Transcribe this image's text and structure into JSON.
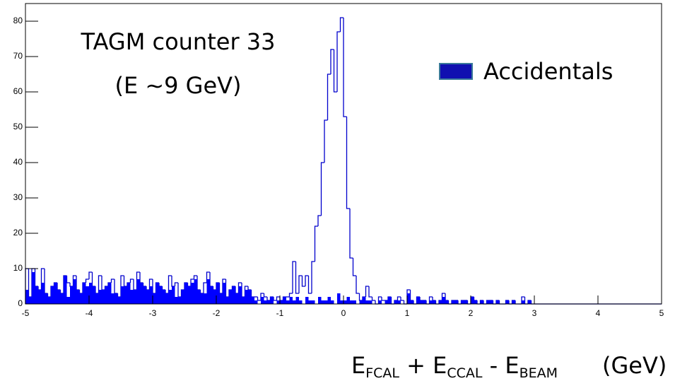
{
  "chart_data": {
    "type": "histogram",
    "title_lines": [
      "TAGM counter 33",
      "(E ∼9 GeV)"
    ],
    "xlabel_parts": [
      "E",
      "FCAL",
      " + E",
      "CCAL",
      " - E",
      "BEAM"
    ],
    "xlabel_unit": "(GeV)",
    "bins": [
      -5,
      -4.95,
      -4.9,
      -4.85,
      -4.8,
      -4.75,
      -4.7,
      -4.65,
      -4.6,
      -4.55,
      -4.5,
      -4.45,
      -4.4,
      -4.35,
      -4.3,
      -4.25,
      -4.2,
      -4.15,
      -4.1,
      -4.05,
      -4,
      -3.95,
      -3.9,
      -3.85,
      -3.8,
      -3.75,
      -3.7,
      -3.65,
      -3.6,
      -3.55,
      -3.5,
      -3.45,
      -3.4,
      -3.35,
      -3.3,
      -3.25,
      -3.2,
      -3.15,
      -3.1,
      -3.05,
      -3,
      -2.95,
      -2.9,
      -2.85,
      -2.8,
      -2.75,
      -2.7,
      -2.65,
      -2.6,
      -2.55,
      -2.5,
      -2.45,
      -2.4,
      -2.35,
      -2.3,
      -2.25,
      -2.2,
      -2.15,
      -2.1,
      -2.05,
      -2,
      -1.95,
      -1.9,
      -1.85,
      -1.8,
      -1.75,
      -1.7,
      -1.65,
      -1.6,
      -1.55,
      -1.5,
      -1.45,
      -1.4,
      -1.35,
      -1.3,
      -1.25,
      -1.2,
      -1.15,
      -1.1,
      -1.05,
      -1,
      -0.95,
      -0.9,
      -0.85,
      -0.8,
      -0.75,
      -0.7,
      -0.65,
      -0.6,
      -0.55,
      -0.5,
      -0.45,
      -0.4,
      -0.35,
      -0.3,
      -0.25,
      -0.2,
      -0.15,
      -0.1,
      -0.05,
      0,
      0.05,
      0.1,
      0.15,
      0.2,
      0.25,
      0.3,
      0.35,
      0.4,
      0.45,
      0.5,
      0.55,
      0.6,
      0.65,
      0.7,
      0.75,
      0.8,
      0.85,
      0.9,
      0.95,
      1,
      1.05,
      1.1,
      1.15,
      1.2,
      1.25,
      1.3,
      1.35,
      1.4,
      1.45,
      1.5,
      1.55,
      1.6,
      1.65,
      1.7,
      1.75,
      1.8,
      1.85,
      1.9,
      1.95,
      2,
      2.05,
      2.1,
      2.15,
      2.2,
      2.25,
      2.3,
      2.35,
      2.4,
      2.45,
      2.5,
      2.55,
      2.6,
      2.65,
      2.7,
      2.75,
      2.8,
      2.85,
      2.9,
      2.95,
      3,
      3.05,
      3.1,
      3.15,
      3.2,
      3.25,
      3.3,
      3.35,
      3.4,
      3.45,
      3.5,
      3.55,
      3.6,
      3.65,
      3.7,
      3.75,
      3.8,
      3.85,
      3.9,
      3.95,
      4,
      4.05,
      4.1,
      4.15,
      4.2,
      4.25,
      4.3,
      4.35,
      4.4,
      4.45,
      4.5,
      4.55,
      4.6,
      4.65,
      4.7,
      4.75,
      4.8,
      4.85,
      4.9,
      4.95,
      5
    ],
    "series": [
      {
        "color": "#0000cc",
        "fill": false,
        "values": [
          10,
          2,
          10,
          5,
          4,
          10,
          3,
          2,
          5,
          6,
          4,
          3,
          8,
          6,
          5,
          8,
          4,
          3,
          6,
          7,
          9,
          5,
          3,
          8,
          4,
          5,
          6,
          7,
          3,
          2,
          8,
          5,
          6,
          7,
          4,
          9,
          6,
          5,
          4,
          7,
          3,
          6,
          5,
          4,
          3,
          8,
          5,
          6,
          2,
          4,
          6,
          5,
          7,
          8,
          4,
          3,
          6,
          9,
          5,
          4,
          6,
          3,
          7,
          2,
          4,
          5,
          3,
          6,
          2,
          5,
          4,
          2,
          2,
          1,
          3,
          2,
          1,
          2,
          1,
          2,
          1,
          2,
          2,
          3,
          12,
          3,
          8,
          5,
          8,
          3,
          12,
          22,
          25,
          40,
          52,
          65,
          72,
          60,
          77,
          81,
          53,
          27,
          13,
          8,
          3,
          1,
          2,
          5,
          2,
          1,
          0,
          2,
          1,
          1,
          2,
          0,
          1,
          2,
          1,
          0,
          4,
          1,
          0,
          2,
          1,
          1,
          0,
          2,
          1,
          0,
          1,
          3,
          1,
          0,
          1,
          1,
          0,
          1,
          1,
          0,
          2,
          1,
          0,
          1,
          0,
          1,
          1,
          0,
          1,
          0,
          0,
          1,
          0,
          1,
          0,
          0,
          2,
          0,
          1,
          0,
          0,
          0,
          0,
          0,
          0,
          0,
          0,
          0,
          0,
          0,
          0,
          0,
          0,
          0,
          0,
          0,
          0,
          0,
          0,
          0,
          0,
          0,
          0,
          0,
          0,
          0,
          0,
          0,
          0,
          0,
          0,
          0,
          0,
          0,
          0,
          0,
          0,
          0,
          0,
          0
        ]
      },
      {
        "name": "Accidentals",
        "color": "#0000ff",
        "fill": true,
        "values": [
          4,
          2,
          9,
          5,
          4,
          6,
          3,
          2,
          5,
          6,
          4,
          3,
          8,
          2,
          5,
          7,
          4,
          3,
          6,
          5,
          6,
          5,
          3,
          4,
          4,
          5,
          6,
          3,
          3,
          2,
          5,
          5,
          6,
          4,
          4,
          7,
          6,
          5,
          4,
          5,
          3,
          6,
          5,
          4,
          3,
          4,
          5,
          2,
          2,
          4,
          6,
          5,
          6,
          7,
          4,
          3,
          3,
          7,
          5,
          4,
          6,
          3,
          6,
          2,
          4,
          5,
          3,
          5,
          2,
          4,
          4,
          2,
          1,
          0,
          2,
          1,
          1,
          2,
          0,
          1,
          1,
          2,
          1,
          2,
          1,
          2,
          1,
          0,
          2,
          1,
          1,
          0,
          2,
          1,
          1,
          2,
          1,
          0,
          3,
          1,
          1,
          2,
          1,
          1,
          0,
          1,
          2,
          1,
          1,
          0,
          0,
          1,
          0,
          1,
          2,
          0,
          1,
          1,
          0,
          0,
          3,
          1,
          0,
          2,
          1,
          1,
          0,
          1,
          1,
          0,
          1,
          2,
          1,
          0,
          1,
          1,
          0,
          1,
          1,
          0,
          2,
          1,
          0,
          1,
          0,
          1,
          1,
          0,
          1,
          0,
          0,
          1,
          0,
          1,
          0,
          0,
          1,
          0,
          1,
          0,
          0,
          0,
          0,
          0,
          0,
          0,
          0,
          0,
          0,
          0,
          0,
          0,
          0,
          0,
          0,
          0,
          0,
          0,
          0,
          0,
          0,
          0,
          0,
          0,
          0,
          0,
          0,
          0,
          0,
          0,
          0,
          0,
          0,
          0,
          0,
          0,
          0,
          0,
          0,
          0
        ]
      }
    ],
    "xlim": [
      -5,
      5
    ],
    "xticks": [
      -5,
      -4,
      -3,
      -2,
      -1,
      0,
      1,
      2,
      3,
      4,
      5
    ],
    "ylim": [
      0,
      85
    ],
    "yticks": [
      0,
      10,
      20,
      30,
      40,
      50,
      60,
      70,
      80
    ],
    "legend": "upper-right"
  }
}
